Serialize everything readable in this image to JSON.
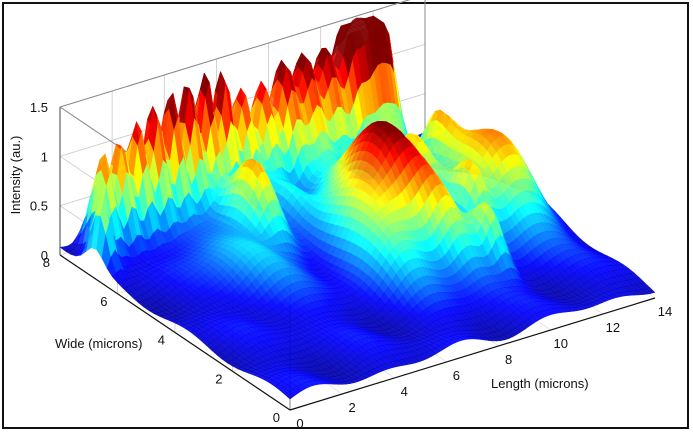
{
  "chart_data": {
    "type": "surface",
    "zlabel": "Intensity (au.)",
    "ylabel": "Wide (microns)",
    "xlabel": "Length (microns)",
    "xlim": [
      0,
      14
    ],
    "ylim": [
      0,
      8
    ],
    "zlim": [
      0,
      1.5
    ],
    "x_ticks": [
      "0",
      "2",
      "4",
      "6",
      "8",
      "10",
      "12",
      "14"
    ],
    "y_ticks": [
      "0",
      "2",
      "4",
      "6",
      "8"
    ],
    "z_ticks": [
      "0",
      "0.5",
      "1",
      "1.5"
    ],
    "grid": true,
    "colormap": "jet",
    "colors": [
      "#00008f",
      "#0000ff",
      "#0080ff",
      "#00ffff",
      "#80ff80",
      "#ffff00",
      "#ff8000",
      "#ff0000",
      "#800000"
    ],
    "peaks": [
      {
        "x": 0.3,
        "y": 6.8,
        "z": 0.75,
        "w": 0.18
      },
      {
        "x": 0.9,
        "y": 7.3,
        "z": 1.05,
        "w": 0.22
      },
      {
        "x": 1.6,
        "y": 7.35,
        "z": 1.05,
        "w": 0.22
      },
      {
        "x": 2.3,
        "y": 7.4,
        "z": 1.1,
        "w": 0.22
      },
      {
        "x": 3.0,
        "y": 7.45,
        "z": 1.2,
        "w": 0.22
      },
      {
        "x": 3.7,
        "y": 7.5,
        "z": 1.3,
        "w": 0.22
      },
      {
        "x": 4.4,
        "y": 7.55,
        "z": 1.35,
        "w": 0.22
      },
      {
        "x": 5.1,
        "y": 7.6,
        "z": 1.35,
        "w": 0.22
      },
      {
        "x": 5.8,
        "y": 7.6,
        "z": 1.35,
        "w": 0.22
      },
      {
        "x": 6.5,
        "y": 7.6,
        "z": 1.1,
        "w": 0.25
      },
      {
        "x": 7.3,
        "y": 7.6,
        "z": 1.05,
        "w": 0.25
      },
      {
        "x": 8.1,
        "y": 7.6,
        "z": 1.15,
        "w": 0.28
      },
      {
        "x": 8.9,
        "y": 7.6,
        "z": 1.2,
        "w": 0.3
      },
      {
        "x": 9.7,
        "y": 7.6,
        "z": 1.25,
        "w": 0.3
      },
      {
        "x": 10.5,
        "y": 7.6,
        "z": 1.35,
        "w": 0.32
      },
      {
        "x": 11.2,
        "y": 7.6,
        "z": 1.45,
        "w": 0.32
      },
      {
        "x": 11.8,
        "y": 7.6,
        "z": 1.4,
        "w": 0.3
      },
      {
        "x": 12.0,
        "y": 5.8,
        "z": 0.55,
        "w": 0.3
      },
      {
        "x": 5.2,
        "y": 5.9,
        "z": 0.75,
        "w": 0.45
      },
      {
        "x": 8.7,
        "y": 4.6,
        "z": 1.15,
        "w": 0.75
      },
      {
        "x": 10.6,
        "y": 5.3,
        "z": 0.65,
        "w": 0.4
      },
      {
        "x": 12.1,
        "y": 4.2,
        "z": 0.8,
        "w": 0.7
      },
      {
        "x": 11.0,
        "y": 3.7,
        "z": 0.55,
        "w": 0.3
      },
      {
        "x": 7.2,
        "y": 3.7,
        "z": 0.55,
        "w": 0.7
      },
      {
        "x": 10.3,
        "y": 2.4,
        "z": 0.55,
        "w": 0.3
      },
      {
        "x": 9.3,
        "y": 2.9,
        "z": 0.45,
        "w": 0.5
      },
      {
        "x": 3.6,
        "y": 5.0,
        "z": 0.35,
        "w": 0.8
      },
      {
        "x": 6.8,
        "y": 6.4,
        "z": 0.4,
        "w": 0.4
      },
      {
        "x": 13.0,
        "y": 4.0,
        "z": 0.35,
        "w": 0.5
      }
    ]
  }
}
